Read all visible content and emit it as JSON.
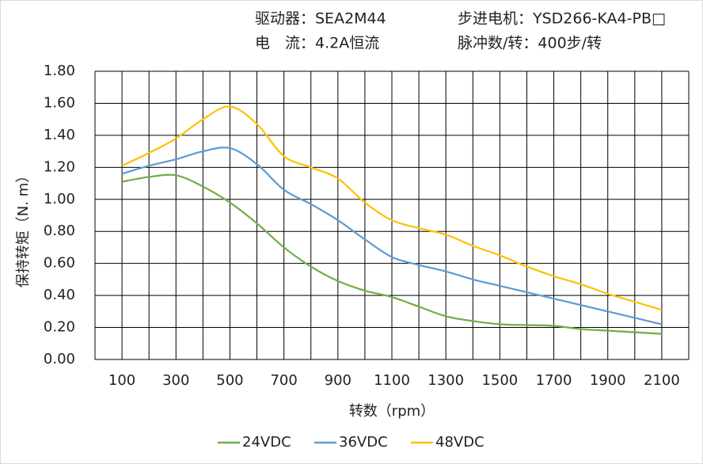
{
  "header": {
    "driver": "驱动器：SEA2M44",
    "motor": "步进电机：YSD266-KA4-PB□",
    "current": "电　流：4.2A恒流",
    "pulses": "脉冲数/转：400步/转"
  },
  "chart_data": {
    "type": "line",
    "smooth": true,
    "x_label": "转数（rpm）",
    "y_label": "保持转矩（N. m）",
    "x": [
      100,
      200,
      300,
      400,
      500,
      600,
      700,
      800,
      900,
      1000,
      1100,
      1200,
      1300,
      1400,
      1500,
      1600,
      1700,
      1800,
      1900,
      2000,
      2100
    ],
    "series": [
      {
        "name": "24VDC",
        "color": "#70ad47",
        "values": [
          1.11,
          1.14,
          1.15,
          1.08,
          0.98,
          0.85,
          0.7,
          0.58,
          0.49,
          0.43,
          0.39,
          0.33,
          0.27,
          0.24,
          0.22,
          0.215,
          0.21,
          0.19,
          0.18,
          0.17,
          0.16
        ]
      },
      {
        "name": "36VDC",
        "color": "#5b9bd5",
        "values": [
          1.16,
          1.21,
          1.25,
          1.3,
          1.32,
          1.22,
          1.06,
          0.97,
          0.87,
          0.75,
          0.64,
          0.59,
          0.55,
          0.5,
          0.46,
          0.42,
          0.38,
          0.34,
          0.3,
          0.26,
          0.22
        ]
      },
      {
        "name": "48VDC",
        "color": "#ffc000",
        "values": [
          1.21,
          1.29,
          1.38,
          1.5,
          1.58,
          1.47,
          1.27,
          1.2,
          1.13,
          0.98,
          0.87,
          0.82,
          0.78,
          0.71,
          0.65,
          0.58,
          0.52,
          0.47,
          0.41,
          0.36,
          0.31
        ]
      }
    ],
    "xlim": [
      0,
      2200
    ],
    "xticks": [
      100,
      300,
      500,
      700,
      900,
      1100,
      1300,
      1500,
      1700,
      1900,
      2100
    ],
    "xgrid": [
      0,
      100,
      200,
      300,
      400,
      500,
      600,
      700,
      800,
      900,
      1000,
      1100,
      1200,
      1300,
      1400,
      1500,
      1600,
      1700,
      1800,
      1900,
      2000,
      2100,
      2200
    ],
    "ylim": [
      0,
      1.8
    ],
    "yticks": [
      {
        "value": 0,
        "label": "0.00"
      },
      {
        "value": 0.2,
        "label": "0.20"
      },
      {
        "value": 0.4,
        "label": "0.40"
      },
      {
        "value": 0.6,
        "label": "0.60"
      },
      {
        "value": 0.8,
        "label": "0.80"
      },
      {
        "value": 1.0,
        "label": "1.00"
      },
      {
        "value": 1.2,
        "label": "1.20"
      },
      {
        "value": 1.4,
        "label": "1.40"
      },
      {
        "value": 1.6,
        "label": "1.60"
      },
      {
        "value": 1.8,
        "label": "1.80"
      }
    ],
    "grid": true,
    "legend": "bottom"
  }
}
